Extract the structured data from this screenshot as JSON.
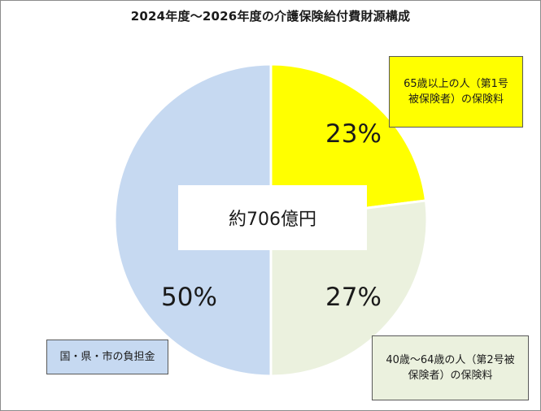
{
  "chart_data": {
    "type": "pie",
    "title": "2024年度～2026年度の介護保険給付費財源構成",
    "center_label": "約706億円",
    "slices": [
      {
        "label": "65歳以上の人（第1号被保険者）の保険料",
        "label_lines": [
          "65歳以上の人（第1号",
          "被保険者）の保険料"
        ],
        "value": 23,
        "value_label": "23%",
        "color": "#ffff00"
      },
      {
        "label": "40歳～64歳の人（第2号被保険者）の保険料",
        "label_lines": [
          "40歳～64歳の人（第2号被",
          "保険者）の保険料"
        ],
        "value": 27,
        "value_label": "27%",
        "color": "#ebf1de"
      },
      {
        "label": "国・県・市の負担金",
        "label_lines": [
          "国・県・市の負担金"
        ],
        "value": 50,
        "value_label": "50%",
        "color": "#c6d9f1"
      }
    ],
    "start_angle_deg": 0,
    "direction": "clockwise"
  }
}
